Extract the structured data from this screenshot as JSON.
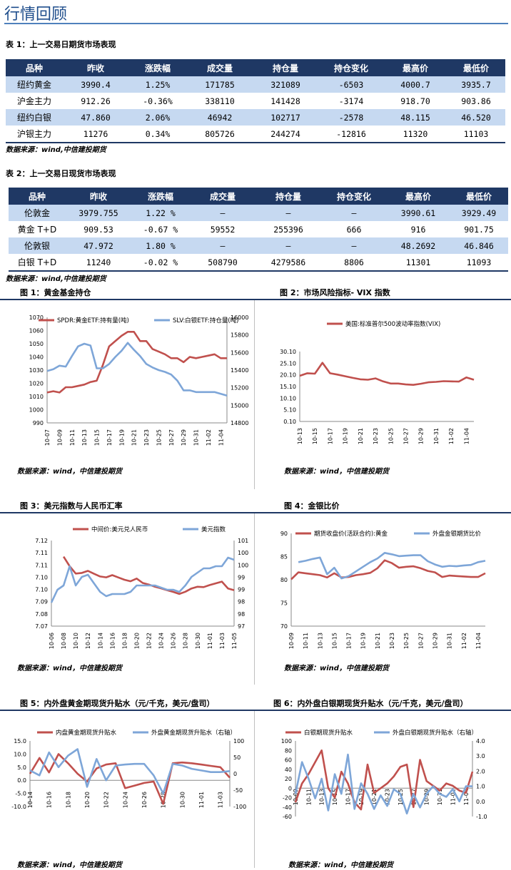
{
  "page_title": "行情回顾",
  "table1": {
    "caption": "表 1：上一交易日期货市场表现",
    "headers": [
      "品种",
      "昨收",
      "涨跌幅",
      "成交量",
      "持仓量",
      "持仓变化",
      "最高价",
      "最低价"
    ],
    "rows": [
      [
        "纽约黄金",
        "3990.4",
        "1.25%",
        "171785",
        "321089",
        "-6503",
        "4000.7",
        "3935.7"
      ],
      [
        "沪金主力",
        "912.26",
        "-0.36%",
        "338110",
        "141428",
        "-3174",
        "918.70",
        "903.86"
      ],
      [
        "纽约白银",
        "47.860",
        "2.06%",
        "46942",
        "102717",
        "-2578",
        "48.115",
        "46.520"
      ],
      [
        "沪银主力",
        "11276",
        "0.34%",
        "805726",
        "244274",
        "-12816",
        "11320",
        "11103"
      ]
    ]
  },
  "source_note": "数据来源：wind,中信建投期货",
  "table2": {
    "caption": "表 2：上一交易日现货市场表现",
    "headers": [
      "品种",
      "昨收",
      "涨跌幅",
      "成交量",
      "持仓量",
      "持仓变化",
      "最高价",
      "最低价"
    ],
    "rows": [
      [
        "伦敦金",
        "3979.755",
        "1.22 %",
        "–",
        "–",
        "–",
        "3990.61",
        "3929.49"
      ],
      [
        "黄金 T+D",
        "909.53",
        "-0.67 %",
        "59552",
        "255396",
        "666",
        "916",
        "901.75"
      ],
      [
        "伦敦银",
        "47.972",
        "1.80 %",
        "–",
        "–",
        "–",
        "48.2692",
        "46.846"
      ],
      [
        "白银 T+D",
        "11240",
        "-0.02 %",
        "508790",
        "4279586",
        "8806",
        "11301",
        "11093"
      ]
    ]
  },
  "fig_source": "数据来源：wind，中信建投期货",
  "figures": [
    {
      "title": "图 1：黄金基金持仓"
    },
    {
      "title": "图 2：市场风险指标- VIX 指数"
    },
    {
      "title": "图 3：美元指数与人民币汇率"
    },
    {
      "title": "图 4：金银比价"
    },
    {
      "title": "图 5：内外盘黄金期现货升贴水（元/千克，美元/盘司）"
    },
    {
      "title": "图 6：内外盘白银期现货升贴水（元/千克，美元/盘司）"
    }
  ],
  "colors": {
    "red": "#c0504d",
    "blue": "#7ea6d8",
    "header": "#1f3864",
    "alt_row": "#c6d9f1",
    "title": "#1f4e8c"
  },
  "chart_data": [
    {
      "type": "line",
      "categories": [
        "10-07",
        "10-08",
        "10-09",
        "10-10",
        "10-11",
        "10-12",
        "10-13",
        "10-14",
        "10-15",
        "10-16",
        "10-17",
        "10-18",
        "10-19",
        "10-20",
        "10-21",
        "10-22",
        "10-23",
        "10-24",
        "10-25",
        "10-26",
        "10-27",
        "10-28",
        "10-29",
        "10-30",
        "10-31",
        "11-01",
        "11-02",
        "11-03",
        "11-04",
        "11-05"
      ],
      "tick_labels": [
        "10-07",
        "10-09",
        "10-11",
        "10-13",
        "10-15",
        "10-17",
        "10-19",
        "10-21",
        "10-23",
        "10-25",
        "10-27",
        "10-29",
        "10-31",
        "11-02",
        "11-04"
      ],
      "series": [
        {
          "name": "SPDR:黄金ETF:持有量(吨)",
          "axis": "left",
          "color": "#c0504d",
          "values": [
            1013,
            1014,
            1013,
            1017,
            1017,
            1018,
            1019,
            1021,
            1022,
            1034,
            1048,
            1052,
            1056,
            1059,
            1059,
            1052,
            1052,
            1046,
            1044,
            1042,
            1039,
            1039,
            1036,
            1040,
            1039,
            1040,
            1041,
            1042,
            1039,
            1039
          ]
        },
        {
          "name": "SLV:白银ETF:持仓量(吨)",
          "axis": "right",
          "color": "#7ea6d8",
          "values": [
            15390,
            15410,
            15450,
            15440,
            15560,
            15670,
            15700,
            15680,
            15420,
            15420,
            15470,
            15550,
            15620,
            15710,
            15630,
            15560,
            15470,
            15430,
            15400,
            15380,
            15350,
            15280,
            15170,
            15170,
            15150,
            15150,
            15150,
            15150,
            15130,
            15110
          ]
        }
      ],
      "ylim_left": [
        990,
        1070
      ],
      "yticks_left": [
        990,
        1000,
        1010,
        1020,
        1030,
        1040,
        1050,
        1060,
        1070
      ],
      "ylim_right": [
        14800,
        16000
      ],
      "yticks_right": [
        14800,
        15000,
        15200,
        15400,
        15600,
        15800,
        16000
      ],
      "legend": "top"
    },
    {
      "type": "line",
      "categories": [
        "10-13",
        "10-14",
        "10-15",
        "10-16",
        "10-17",
        "10-18",
        "10-19",
        "10-20",
        "10-21",
        "10-22",
        "10-23",
        "10-24",
        "10-25",
        "10-26",
        "10-27",
        "10-28",
        "10-29",
        "10-30",
        "10-31",
        "11-01",
        "11-02",
        "11-03",
        "11-04",
        "11-05"
      ],
      "tick_labels": [
        "10-13",
        "10-15",
        "10-17",
        "10-19",
        "10-21",
        "10-23",
        "10-25",
        "10-27",
        "10-29",
        "10-31",
        "11-02",
        "11-04"
      ],
      "series": [
        {
          "name": "美国:标准普尔500波动率指数(VIX)",
          "axis": "left",
          "color": "#c0504d",
          "values": [
            19.7,
            20.8,
            20.6,
            25.3,
            20.8,
            20.2,
            19.5,
            18.8,
            18.2,
            18.0,
            18.6,
            17.3,
            16.4,
            16.4,
            16.0,
            15.8,
            16.3,
            16.9,
            17.1,
            17.4,
            17.3,
            17.2,
            19.0,
            18.0
          ]
        }
      ],
      "ylim_left": [
        0.1,
        30.1
      ],
      "yticks_left": [
        "0.10",
        "5.10",
        "10.10",
        "15.10",
        "20.10",
        "25.10",
        "30.10"
      ],
      "legend": "top"
    },
    {
      "type": "line",
      "categories": [
        "10-06",
        "10-07",
        "10-08",
        "10-09",
        "10-10",
        "10-11",
        "10-12",
        "10-13",
        "10-14",
        "10-15",
        "10-16",
        "10-17",
        "10-18",
        "10-19",
        "10-20",
        "10-21",
        "10-22",
        "10-23",
        "10-24",
        "10-25",
        "10-26",
        "10-27",
        "10-28",
        "10-29",
        "10-30",
        "10-31",
        "11-01",
        "11-02",
        "11-03",
        "11-04",
        "11-05"
      ],
      "tick_labels": [
        "10-06",
        "10-08",
        "10-10",
        "10-12",
        "10-14",
        "10-16",
        "10-18",
        "10-20",
        "10-22",
        "10-24",
        "10-26",
        "10-28",
        "10-30",
        "11-01",
        "11-03",
        "11-05"
      ],
      "series": [
        {
          "name": "中间价:美元兑人民币",
          "axis": "left",
          "color": "#c0504d",
          "values": [
            null,
            null,
            7.1106,
            7.105,
            7.1007,
            7.1011,
            7.1023,
            7.1006,
            7.099,
            7.0985,
            7.0998,
            7.0984,
            7.0971,
            7.0962,
            7.0978,
            7.0952,
            7.0943,
            7.093,
            7.0921,
            7.091,
            7.09,
            7.0888,
            7.0901,
            7.092,
            7.093,
            7.0928,
            7.094,
            7.095,
            7.096,
            7.092,
            7.091
          ]
        },
        {
          "name": "美元指数",
          "axis": "right",
          "color": "#7ea6d8",
          "values": [
            98.1,
            98.7,
            98.9,
            99.8,
            98.9,
            99.3,
            99.4,
            99.0,
            98.6,
            98.4,
            98.5,
            98.5,
            98.5,
            98.6,
            98.9,
            98.9,
            98.9,
            98.9,
            98.8,
            98.7,
            98.7,
            98.6,
            98.9,
            99.3,
            99.5,
            99.7,
            99.7,
            99.8,
            99.8,
            100.2,
            100.1
          ]
        }
      ],
      "ylim_left": [
        7.07,
        7.12
      ],
      "yticks_left": [
        "7.07",
        "7.08",
        "7.09",
        "7.10",
        "7.10",
        "7.11",
        "7.11",
        "7.12"
      ],
      "ylim_right": [
        97,
        101
      ],
      "yticks_right": [
        "97",
        "98",
        "98",
        "99",
        "99",
        "100",
        "100",
        "101"
      ],
      "legend": "top"
    },
    {
      "type": "line",
      "categories": [
        "10-09",
        "10-10",
        "10-11",
        "10-12",
        "10-13",
        "10-14",
        "10-15",
        "10-16",
        "10-17",
        "10-18",
        "10-19",
        "10-20",
        "10-21",
        "10-22",
        "10-23",
        "10-24",
        "10-25",
        "10-26",
        "10-27",
        "10-28",
        "10-29",
        "10-30",
        "10-31",
        "11-01",
        "11-02",
        "11-03",
        "11-04",
        "11-05"
      ],
      "tick_labels": [
        "10-09",
        "10-11",
        "10-13",
        "10-15",
        "10-17",
        "10-19",
        "10-21",
        "10-23",
        "10-25",
        "10-27",
        "10-29",
        "10-31",
        "11-02",
        "11-04"
      ],
      "series": [
        {
          "name": "期货收盘价(活跃合约):黄金",
          "axis": "left",
          "color": "#c0504d",
          "values": [
            80.1,
            81.6,
            81.4,
            81.2,
            81.0,
            80.5,
            81.4,
            80.5,
            80.6,
            81.0,
            81.2,
            81.5,
            82.5,
            84.2,
            83.6,
            82.6,
            82.8,
            82.9,
            82.5,
            81.9,
            81.6,
            80.6,
            80.9,
            80.8,
            80.7,
            80.6,
            80.6,
            81.4
          ]
        },
        {
          "name": "外盘金银期货比价",
          "axis": "left",
          "color": "#7ea6d8",
          "values": [
            null,
            83.8,
            84.1,
            84.5,
            84.8,
            81.2,
            82.6,
            80.3,
            80.8,
            81.8,
            82.8,
            83.8,
            84.6,
            85.8,
            85.5,
            85.1,
            85.2,
            85.3,
            85.3,
            84.0,
            83.3,
            82.8,
            83.0,
            82.9,
            83.1,
            83.2,
            83.8,
            84.1
          ]
        }
      ],
      "ylim_left": [
        70,
        90
      ],
      "yticks_left": [
        70,
        75,
        80,
        85,
        90
      ],
      "legend": "top"
    },
    {
      "type": "line",
      "categories": [
        "10-14",
        "10-15",
        "10-16",
        "10-17",
        "10-18",
        "10-19",
        "10-20",
        "10-21",
        "10-22",
        "10-23",
        "10-24",
        "10-25",
        "10-26",
        "10-27",
        "10-28",
        "10-29",
        "10-30",
        "10-31",
        "11-01",
        "11-02",
        "11-03",
        "11-04"
      ],
      "tick_labels": [
        "10-14",
        "10-16",
        "10-18",
        "10-20",
        "10-22",
        "10-24",
        "10-26",
        "10-28",
        "10-30",
        "11-01",
        "11-03"
      ],
      "series": [
        {
          "name": "内盘黄金期现货升贴水",
          "axis": "left",
          "color": "#c0504d",
          "values": [
            2.5,
            8.5,
            3.0,
            10.0,
            6.5,
            2.5,
            -0.5,
            4.5,
            6.0,
            6.5,
            -3.0,
            -2.0,
            -1.0,
            -0.5,
            -9.0,
            6.5,
            6.8,
            6.5,
            6.0,
            5.5,
            5.0,
            1.0
          ]
        },
        {
          "name": "外盘黄金期现货升贴水（右轴）",
          "axis": "right",
          "color": "#7ea6d8",
          "values": [
            10,
            -5,
            65,
            20,
            55,
            75,
            -40,
            45,
            -20,
            25,
            28,
            30,
            30,
            -5,
            -60,
            30,
            25,
            15,
            10,
            5,
            5,
            8
          ]
        }
      ],
      "ylim_left": [
        -10,
        15
      ],
      "yticks_left": [
        "-10.0",
        "-5.0",
        "0.0",
        "5.0",
        "10.0",
        "15.0"
      ],
      "ylim_right": [
        -100,
        100
      ],
      "yticks_right": [
        -100,
        -50,
        0,
        50,
        100
      ],
      "legend": "top"
    },
    {
      "type": "line",
      "categories": [
        "10-09",
        "10-10",
        "10-11",
        "10-12",
        "10-13",
        "10-14",
        "10-15",
        "10-16",
        "10-17",
        "10-18",
        "10-19",
        "10-20",
        "10-21",
        "10-22",
        "10-23",
        "10-24",
        "10-25",
        "10-26",
        "10-27",
        "10-28",
        "10-29",
        "10-30",
        "10-31",
        "11-01",
        "11-02",
        "11-03",
        "11-04",
        "11-05"
      ],
      "tick_labels": [
        "10-09",
        "10-11",
        "10-13",
        "10-15",
        "10-17",
        "10-19",
        "10-21",
        "10-23",
        "10-25",
        "10-27",
        "10-29",
        "10-31",
        "11-02",
        "11-04"
      ],
      "series": [
        {
          "name": "白银期现货升贴水",
          "axis": "left",
          "color": "#c0504d",
          "values": [
            -30,
            10,
            30,
            55,
            80,
            0,
            -20,
            35,
            10,
            -30,
            -45,
            50,
            -10,
            0,
            10,
            25,
            45,
            50,
            -40,
            60,
            15,
            5,
            -5,
            10,
            5,
            -5,
            -10,
            35
          ]
        },
        {
          "name": "外盘白银期现货升贴水（右轴）",
          "axis": "right",
          "color": "#7ea6d8",
          "values": [
            0.5,
            2.6,
            1.5,
            0.2,
            1.5,
            -0.6,
            1.8,
            0.5,
            3.1,
            -0.5,
            1.2,
            0.5,
            -0.5,
            0.4,
            -0.3,
            0.8,
            0.5,
            -0.8,
            0.5,
            -0.4,
            0.5,
            1.0,
            0.5,
            0.3,
            0.8,
            0.0,
            1.0,
            1.0
          ]
        }
      ],
      "ylim_left": [
        -60,
        100
      ],
      "yticks_left": [
        -60,
        -40,
        -20,
        0,
        20,
        40,
        60,
        80,
        100
      ],
      "ylim_right": [
        -1.0,
        4.0
      ],
      "yticks_right": [
        "-1.0",
        "0.0",
        "1.0",
        "2.0",
        "3.0",
        "4.0"
      ],
      "legend": "top"
    }
  ]
}
